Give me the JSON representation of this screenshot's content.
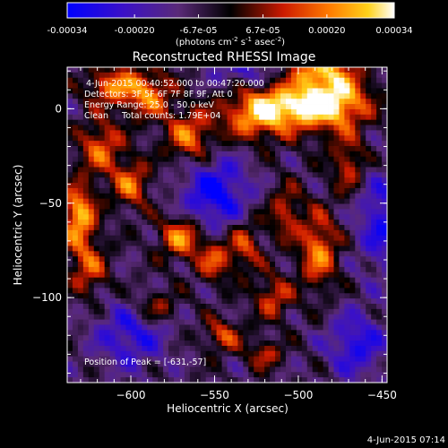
{
  "chart_data": {
    "type": "heatmap",
    "title": "Reconstructed RHESSI Image",
    "colorbar": {
      "ticks": [
        "-0.00034",
        "-0.00020",
        "-6.7e-05",
        "6.7e-05",
        "0.00020",
        "0.00034"
      ],
      "tick_values": [
        -0.00034,
        -0.0002,
        -6.7e-05,
        6.7e-05,
        0.0002,
        0.00034
      ],
      "range": [
        -0.00034,
        0.00034
      ],
      "unit_label": "(photons cm-2 s-1 asec-2)",
      "unit_parts": {
        "a": "(photons cm",
        "b": "-2",
        "c": " s",
        "d": "-1",
        "e": " asec",
        "f": "-2",
        "g": ")"
      }
    },
    "xlabel": "Heliocentric X (arcsec)",
    "ylabel": "Heliocentric Y (arcsec)",
    "xlim": [
      -638,
      -447
    ],
    "ylim": [
      -145,
      22
    ],
    "x_ticks": [
      -600,
      -550,
      -500,
      -450
    ],
    "y_ticks": [
      0,
      -50,
      -100
    ],
    "x_tick_labels": [
      "−600",
      "−550",
      "−500",
      "−450"
    ],
    "y_tick_labels": [
      "0",
      "−50",
      "−100"
    ],
    "annotations": {
      "time_range": "4-Jun-2015 00:40:52.000 to 00:47:20.000",
      "detectors": "Detectors: 3F 5F 6F 7F 8F 9F, Att 0",
      "energy": "Energy Range: 25.0 - 50.0 keV",
      "clean": "Clean     Total counts: 1.79E+04",
      "peak": "Position of Peak = [-631,-57]"
    },
    "peak_position": [
      -631,
      -57
    ],
    "grid": false,
    "colormap": "blue-purple-black-red-yellow-white",
    "features": [
      {
        "x": -500,
        "y": 2,
        "amplitude": 1.0,
        "sigma_x": 22,
        "sigma_y": 8
      },
      {
        "x": -478,
        "y": 8,
        "amplitude": 0.8,
        "sigma_x": 14,
        "sigma_y": 14
      },
      {
        "x": -525,
        "y": -5,
        "amplitude": 0.7,
        "sigma_x": 15,
        "sigma_y": 9
      },
      {
        "x": -565,
        "y": -15,
        "amplitude": 0.75,
        "sigma_x": 10,
        "sigma_y": 10
      },
      {
        "x": -590,
        "y": 8,
        "amplitude": 0.8,
        "sigma_x": 10,
        "sigma_y": 9
      },
      {
        "x": -612,
        "y": 12,
        "amplitude": 0.75,
        "sigma_x": 10,
        "sigma_y": 7
      },
      {
        "x": -618,
        "y": -20,
        "amplitude": 0.7,
        "sigma_x": 9,
        "sigma_y": 10
      },
      {
        "x": -631,
        "y": -57,
        "amplitude": 1.0,
        "sigma_x": 7,
        "sigma_y": 12
      },
      {
        "x": -625,
        "y": -85,
        "amplitude": 0.6,
        "sigma_x": 8,
        "sigma_y": 10
      },
      {
        "x": -600,
        "y": -40,
        "amplitude": 0.7,
        "sigma_x": 8,
        "sigma_y": 9
      },
      {
        "x": -570,
        "y": -68,
        "amplitude": 0.85,
        "sigma_x": 9,
        "sigma_y": 8
      },
      {
        "x": -550,
        "y": -80,
        "amplitude": 0.65,
        "sigma_x": 7,
        "sigma_y": 8
      },
      {
        "x": -532,
        "y": -72,
        "amplitude": 0.6,
        "sigma_x": 7,
        "sigma_y": 10
      },
      {
        "x": -508,
        "y": -55,
        "amplitude": 0.55,
        "sigma_x": 7,
        "sigma_y": 10
      },
      {
        "x": -488,
        "y": -75,
        "amplitude": 0.8,
        "sigma_x": 8,
        "sigma_y": 14
      },
      {
        "x": -515,
        "y": -100,
        "amplitude": 0.6,
        "sigma_x": 8,
        "sigma_y": 8
      },
      {
        "x": -585,
        "y": -105,
        "amplitude": 0.5,
        "sigma_x": 9,
        "sigma_y": 6
      },
      {
        "x": -545,
        "y": -120,
        "amplitude": 0.6,
        "sigma_x": 8,
        "sigma_y": 6
      },
      {
        "x": -520,
        "y": -130,
        "amplitude": 0.55,
        "sigma_x": 7,
        "sigma_y": 5
      },
      {
        "x": -470,
        "y": -30,
        "amplitude": 0.55,
        "sigma_x": 7,
        "sigma_y": 10
      },
      {
        "x": -490,
        "y": 20,
        "amplitude": 0.6,
        "sigma_x": 10,
        "sigma_y": 5
      },
      {
        "x": -550,
        "y": -45,
        "amplitude": -0.75,
        "sigma_x": 14,
        "sigma_y": 14
      },
      {
        "x": -450,
        "y": -60,
        "amplitude": -0.6,
        "sigma_x": 10,
        "sigma_y": 18
      },
      {
        "x": -600,
        "y": -120,
        "amplitude": -0.55,
        "sigma_x": 15,
        "sigma_y": 12
      },
      {
        "x": -465,
        "y": -125,
        "amplitude": -0.6,
        "sigma_x": 12,
        "sigma_y": 12
      },
      {
        "x": -535,
        "y": 20,
        "amplitude": -0.4,
        "sigma_x": 12,
        "sigma_y": 6
      }
    ]
  },
  "footer": {
    "timestamp": "4-Jun-2015 07:14"
  }
}
